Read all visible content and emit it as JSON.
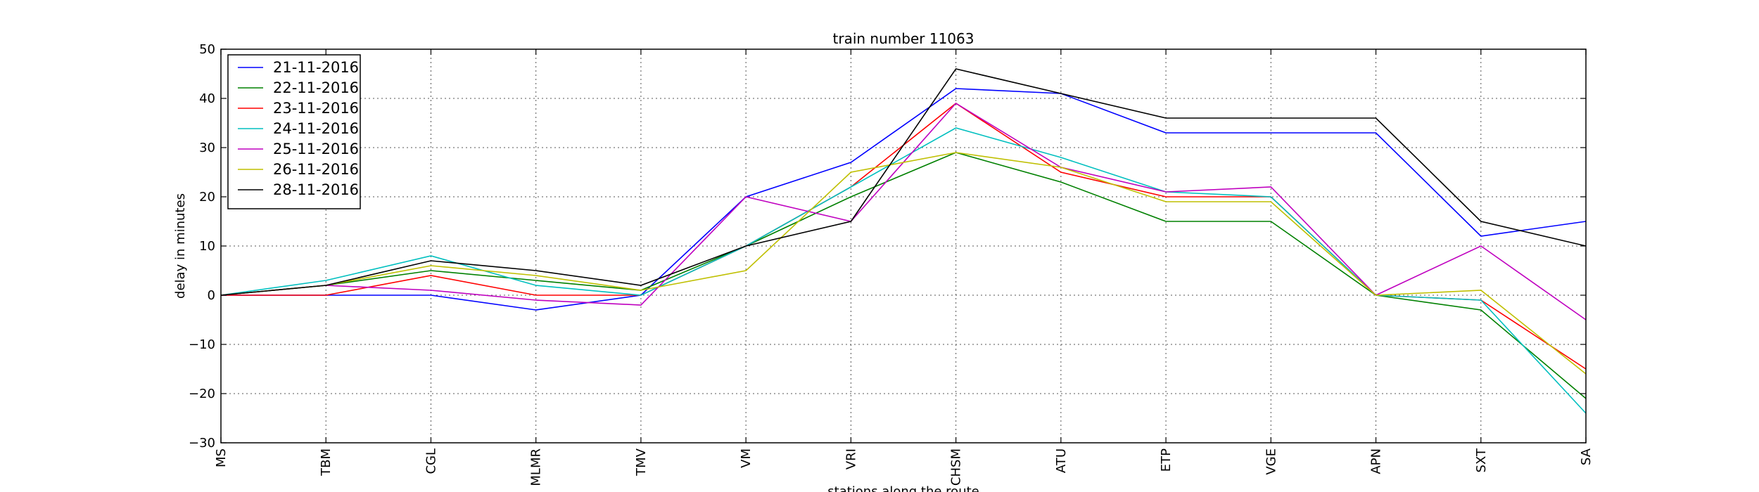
{
  "chart_data": {
    "type": "line",
    "title": "train number 11063",
    "xlabel": "stations along the route",
    "ylabel": "delay in minutes",
    "categories": [
      "MS",
      "TBM",
      "CGL",
      "MLMR",
      "TMV",
      "VM",
      "VRI",
      "CHSM",
      "ATU",
      "ETP",
      "VGE",
      "APN",
      "SXT",
      "SA"
    ],
    "ylim": [
      -30,
      50
    ],
    "yticks": [
      -30,
      -20,
      -10,
      0,
      10,
      20,
      30,
      40,
      50
    ],
    "ytick_labels": [
      "−30",
      "−20",
      "−10",
      "0",
      "10",
      "20",
      "30",
      "40",
      "50"
    ],
    "grid": true,
    "legend_position": "upper-left",
    "series": [
      {
        "name": "21-11-2016",
        "color": "#0000ff",
        "values": [
          0,
          0,
          0,
          -3,
          0,
          20,
          27,
          42,
          41,
          33,
          33,
          33,
          12,
          15
        ]
      },
      {
        "name": "22-11-2016",
        "color": "#008000",
        "values": [
          0,
          2,
          5,
          3,
          1,
          10,
          20,
          29,
          23,
          15,
          15,
          0,
          -3,
          -21
        ]
      },
      {
        "name": "23-11-2016",
        "color": "#ff0000",
        "values": [
          0,
          0,
          4,
          0,
          0,
          10,
          22,
          39,
          25,
          20,
          20,
          0,
          -1,
          -15
        ]
      },
      {
        "name": "24-11-2016",
        "color": "#00bfbf",
        "values": [
          0,
          3,
          8,
          2,
          0,
          10,
          22,
          34,
          28,
          21,
          20,
          0,
          -1,
          -24
        ]
      },
      {
        "name": "25-11-2016",
        "color": "#bf00bf",
        "values": [
          0,
          2,
          1,
          -1,
          -2,
          20,
          15,
          39,
          26,
          21,
          22,
          0,
          10,
          -5
        ]
      },
      {
        "name": "26-11-2016",
        "color": "#bfbf00",
        "values": [
          0,
          2,
          6,
          4,
          1,
          5,
          25,
          29,
          26,
          19,
          19,
          0,
          1,
          -16
        ]
      },
      {
        "name": "28-11-2016",
        "color": "#000000",
        "values": [
          0,
          2,
          7,
          5,
          2,
          10,
          15,
          46,
          41,
          36,
          36,
          36,
          15,
          10
        ]
      }
    ]
  }
}
